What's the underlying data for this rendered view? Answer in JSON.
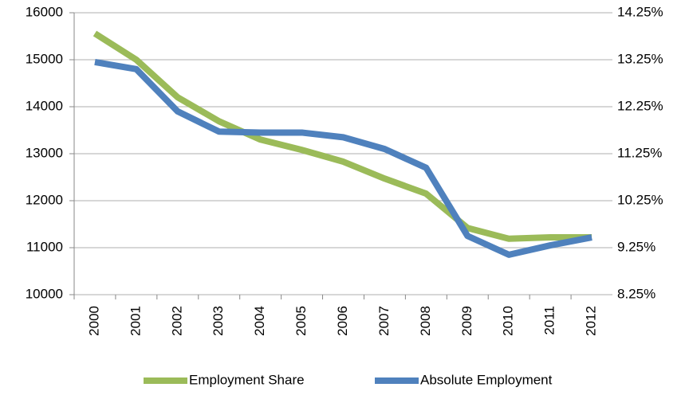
{
  "chart_data": {
    "type": "line",
    "categories": [
      "2000",
      "2001",
      "2002",
      "2003",
      "2004",
      "2005",
      "2006",
      "2007",
      "2008",
      "2009",
      "2010",
      "2011",
      "2012"
    ],
    "series": [
      {
        "name": "Employment Share",
        "color": "#9bbb59",
        "axis": "y2",
        "values": [
          13.81,
          13.25,
          12.45,
          11.94,
          11.55,
          11.33,
          11.08,
          10.72,
          10.4,
          9.67,
          9.44,
          9.47,
          9.47
        ]
      },
      {
        "name": "Absolute Employment",
        "color": "#4f81bd",
        "values": [
          14950,
          14800,
          13900,
          13470,
          13450,
          13450,
          13350,
          13100,
          12700,
          11250,
          10850,
          11050,
          11220
        ]
      }
    ],
    "ylim": [
      10000,
      16000
    ],
    "yticks": [
      10000,
      11000,
      12000,
      13000,
      14000,
      15000,
      16000
    ],
    "y2lim": [
      8.25,
      14.25
    ],
    "y2ticks": [
      {
        "value": 8.25,
        "label": "8.25%"
      },
      {
        "value": 9.25,
        "label": "9.25%"
      },
      {
        "value": 10.25,
        "label": "10.25%"
      },
      {
        "value": 11.25,
        "label": "11.25%"
      },
      {
        "value": 12.25,
        "label": "12.25%"
      },
      {
        "value": 13.25,
        "label": "13.25%"
      },
      {
        "value": 14.25,
        "label": "14.25%"
      }
    ],
    "grid": true
  }
}
